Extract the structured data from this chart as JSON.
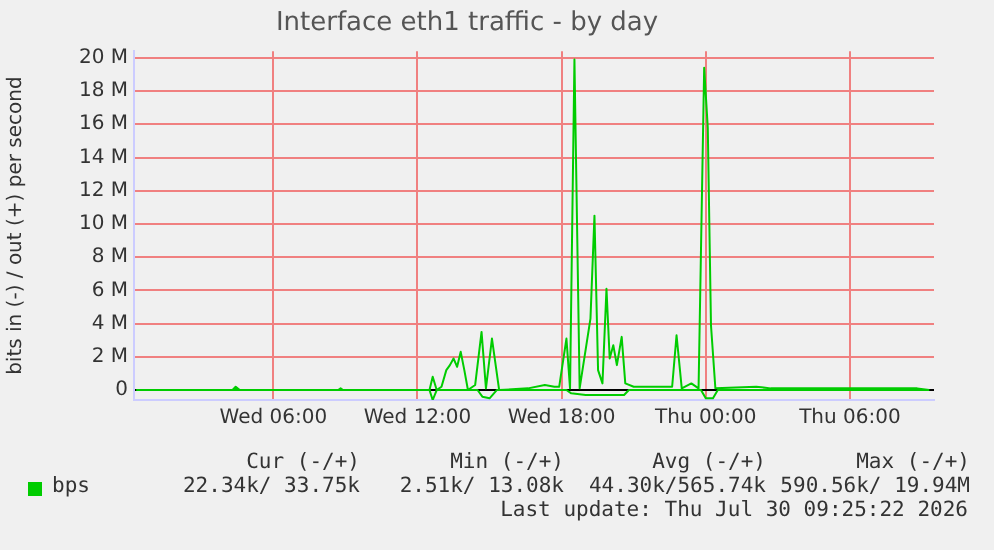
{
  "chart_data": {
    "type": "line",
    "title": "Interface eth1 traffic - by day",
    "ylabel": "bits in (-) / out (+) per second",
    "xlim": [
      "2026-07-29T00:12",
      "2026-07-30T09:30"
    ],
    "xticks": [
      {
        "value": "2026-07-29T06:00",
        "label": "Wed 06:00"
      },
      {
        "value": "2026-07-29T12:00",
        "label": "Wed 12:00"
      },
      {
        "value": "2026-07-29T18:00",
        "label": "Wed 18:00"
      },
      {
        "value": "2026-07-30T00:00",
        "label": "Thu 00:00"
      },
      {
        "value": "2026-07-30T06:00",
        "label": "Thu 06:00"
      }
    ],
    "ylim": [
      -0.6,
      20.4
    ],
    "yticks": [
      0,
      {
        "value": 2,
        "label": "2 M"
      },
      {
        "value": 4,
        "label": "4 M"
      },
      {
        "value": 6,
        "label": "6 M"
      },
      {
        "value": 8,
        "label": "8 M"
      },
      {
        "value": 10,
        "label": "10 M"
      },
      {
        "value": 12,
        "label": "12 M"
      },
      {
        "value": 14,
        "label": "14 M"
      },
      {
        "value": 16,
        "label": "16 M"
      },
      {
        "value": 18,
        "label": "18 M"
      },
      {
        "value": 20,
        "label": "20 M"
      }
    ],
    "grid": true,
    "legend": "bottom",
    "marker": "none",
    "series": [
      {
        "name": "bps",
        "color": "#00cc00",
        "x": [
          "2026-07-29T00:18",
          "2026-07-29T04:18",
          "2026-07-29T04:26",
          "2026-07-29T04:36",
          "2026-07-29T08:42",
          "2026-07-29T08:48",
          "2026-07-29T08:54",
          "2026-07-29T12:30",
          "2026-07-29T12:38",
          "2026-07-29T12:48",
          "2026-07-29T13:00",
          "2026-07-29T13:12",
          "2026-07-29T13:21",
          "2026-07-29T13:30",
          "2026-07-29T13:39",
          "2026-07-29T13:48",
          "2026-07-29T13:57",
          "2026-07-29T14:06",
          "2026-07-29T14:24",
          "2026-07-29T14:40",
          "2026-07-29T14:51",
          "2026-07-29T15:06",
          "2026-07-29T15:24",
          "2026-07-29T16:36",
          "2026-07-29T17:18",
          "2026-07-29T17:42",
          "2026-07-29T17:54",
          "2026-07-29T18:12",
          "2026-07-29T18:21",
          "2026-07-29T18:32",
          "2026-07-29T18:45",
          "2026-07-29T19:12",
          "2026-07-29T19:22",
          "2026-07-29T19:31",
          "2026-07-29T19:42",
          "2026-07-29T19:52",
          "2026-07-29T20:00",
          "2026-07-29T20:09",
          "2026-07-29T20:18",
          "2026-07-29T20:30",
          "2026-07-29T20:39",
          "2026-07-29T21:00",
          "2026-07-29T22:36",
          "2026-07-29T22:47",
          "2026-07-29T23:00",
          "2026-07-29T23:24",
          "2026-07-29T23:42",
          "2026-07-29T23:56",
          "2026-07-30T00:05",
          "2026-07-30T00:13",
          "2026-07-30T00:24",
          "2026-07-30T02:06",
          "2026-07-30T02:42",
          "2026-07-30T07:12",
          "2026-07-30T08:00",
          "2026-07-30T08:48",
          "2026-07-30T09:18"
        ],
        "values": [
          0,
          0,
          0.2,
          0,
          0,
          0.1,
          0,
          0,
          0.8,
          0,
          0.2,
          1.2,
          1.5,
          1.9,
          1.4,
          2.3,
          1.2,
          0,
          0.3,
          3.5,
          0.1,
          3.1,
          0,
          0.1,
          0.3,
          0.2,
          0.2,
          3.1,
          0.1,
          19.9,
          0.1,
          4.3,
          10.5,
          1.2,
          0.4,
          6.1,
          1.9,
          2.7,
          1.5,
          3.2,
          0.4,
          0.2,
          0.2,
          3.3,
          0.1,
          0.4,
          0.1,
          19.4,
          15.8,
          3.9,
          0.1,
          0.2,
          0.1,
          0.1,
          0.1,
          0.1,
          0
        ]
      },
      {
        "color": "#00cc00",
        "x": [
          "2026-07-29T00:18",
          "2026-07-29T12:30",
          "2026-07-29T12:38",
          "2026-07-29T12:48",
          "2026-07-29T14:30",
          "2026-07-29T14:42",
          "2026-07-29T15:00",
          "2026-07-29T15:18",
          "2026-07-29T18:12",
          "2026-07-29T18:24",
          "2026-07-29T19:00",
          "2026-07-29T20:36",
          "2026-07-29T20:48",
          "2026-07-29T23:48",
          "2026-07-30T00:00",
          "2026-07-30T00:18",
          "2026-07-30T00:30",
          "2026-07-30T09:18"
        ],
        "values": [
          0,
          0,
          -0.6,
          0,
          0,
          -0.4,
          -0.5,
          0,
          0,
          -0.2,
          -0.3,
          -0.3,
          0,
          0,
          -0.5,
          -0.5,
          0,
          0
        ]
      }
    ],
    "annotations": [
      "Cur (-/+)",
      "Min (-/+)",
      "Avg (-/+)",
      "Max (-/+)",
      "22.34k/ 33.75k",
      "2.51k/ 13.08k",
      "44.30k/565.74k",
      "590.56k/ 19.94M",
      "Last update: Thu Jul 30 09:25:22 2026"
    ]
  }
}
